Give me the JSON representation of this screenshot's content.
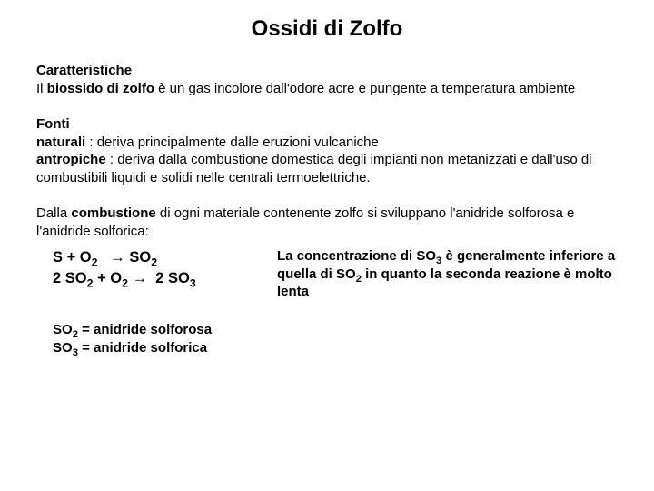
{
  "title": "Ossidi di Zolfo",
  "caratteristiche": {
    "heading": "Caratteristiche",
    "prefix": "Il ",
    "bold": "biossido di zolfo",
    "rest": " è un gas incolore dall'odore acre e pungente a temperatura ambiente"
  },
  "fonti": {
    "heading": "Fonti",
    "naturali_label": "naturali",
    "naturali_text": " : deriva principalmente dalle eruzioni vulcaniche",
    "antropiche_label": "antropiche",
    "antropiche_text": " : deriva dalla combustione domestica degli impianti non metanizzati e dall'uso di combustibili liquidi e solidi nelle centrali termoelettriche."
  },
  "combustione": {
    "prefix": "Dalla ",
    "bold": "combustione",
    "rest": " di ogni materiale contenente zolfo si sviluppano l'anidride solforosa e l'anidride solforica:"
  },
  "equations": {
    "eq1_lhs": "S + O",
    "eq1_rhs": "SO",
    "eq2_lhs_a": "2 SO",
    "eq2_lhs_b": " + O",
    "eq2_rhs": "2 SO",
    "sub2": "2",
    "sub3": "3",
    "arrow": " → "
  },
  "note": {
    "prefix": "La concentrazione di SO",
    "mid1": " è generalmente inferiore a quella di SO",
    "mid2": " in quanto la seconda reazione è molto lenta",
    "sub2": "2",
    "sub3": "3"
  },
  "defs": {
    "d1_a": "SO",
    "d1_b": " = anidride solforosa",
    "d2_a": "SO",
    "d2_b": " = anidride solforica",
    "sub2": "2",
    "sub3": "3"
  }
}
